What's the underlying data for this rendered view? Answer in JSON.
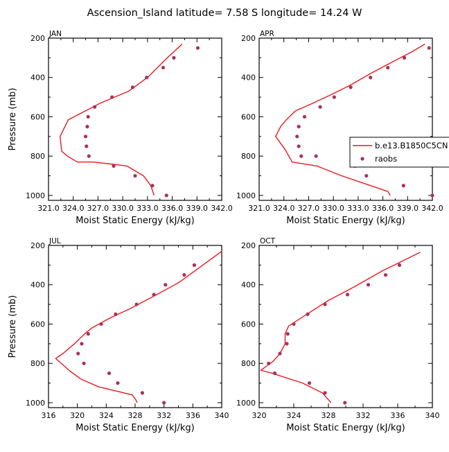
{
  "figure": {
    "title": "Ascension_Island  latitude= 7.58 S longitude= 14.24 W"
  },
  "colors": {
    "model_line": "#e8191e",
    "raobs_marker": "#a8325a",
    "axes": "#000000"
  },
  "chart_data": [
    {
      "type": "line",
      "panel_label": "JAN",
      "xlabel": "Moist Static Energy (kJ/kg)",
      "ylabel": "Pressure (mb)",
      "xlim": [
        321.0,
        342.0
      ],
      "ylim": [
        200,
        1025
      ],
      "y_inverted": true,
      "xticks": [
        "321.0",
        "324.0",
        "327.0",
        "330.0",
        "333.0",
        "336.0",
        "339.0",
        "342.0"
      ],
      "yticks": [
        "200",
        "400",
        "600",
        "800",
        "1000"
      ],
      "grid": false,
      "series": [
        {
          "name": "b.e13.B1850C5CN",
          "kind": "line",
          "x": [
            337.2,
            335.4,
            333.0,
            330.7,
            327.3,
            325.5,
            323.4,
            322.4,
            322.6,
            323.3,
            324.5,
            326.4,
            328.5,
            330.5,
            332.5,
            333.4,
            333.8
          ],
          "y": [
            230,
            300,
            400,
            470,
            530,
            570,
            615,
            700,
            775,
            800,
            830,
            830,
            840,
            850,
            900,
            950,
            1000
          ]
        },
        {
          "name": "raobs",
          "kind": "scatter",
          "x": [
            339.1,
            336.2,
            334.9,
            332.9,
            331.2,
            328.7,
            326.6,
            325.8,
            325.7,
            325.5,
            325.6,
            325.9,
            328.9,
            331.5,
            333.6,
            335.3
          ],
          "y": [
            250,
            300,
            350,
            400,
            450,
            500,
            550,
            600,
            650,
            700,
            750,
            800,
            850,
            900,
            950,
            1000
          ]
        }
      ]
    },
    {
      "type": "line",
      "panel_label": "APR",
      "xlabel": "Moist Static Energy (kJ/kg)",
      "ylabel": "",
      "xlim": [
        321.0,
        342.0
      ],
      "ylim": [
        200,
        1025
      ],
      "y_inverted": true,
      "xticks": [
        "321.0",
        "324.0",
        "327.0",
        "330.0",
        "333.0",
        "336.0",
        "339.0",
        "342.0"
      ],
      "yticks": [
        "200",
        "400",
        "600",
        "800",
        "1000"
      ],
      "grid": false,
      "legend": {
        "placement": "right",
        "entries": [
          "b.e13.B1850C5CN",
          "raobs"
        ]
      },
      "series": [
        {
          "name": "b.e13.B1850C5CN",
          "kind": "line",
          "x": [
            341.1,
            339.5,
            337.2,
            334.5,
            332.0,
            329.6,
            327.3,
            325.4,
            324.3,
            323.6,
            323.0,
            324.2,
            325.0,
            328.0,
            331.0,
            334.5,
            336.6,
            336.9
          ],
          "y": [
            230,
            270,
            320,
            380,
            440,
            490,
            535,
            570,
            615,
            650,
            700,
            770,
            830,
            850,
            900,
            950,
            980,
            1000
          ]
        },
        {
          "name": "raobs",
          "kind": "scatter",
          "x": [
            341.6,
            338.6,
            336.6,
            334.5,
            332.1,
            330.1,
            328.4,
            326.5,
            325.8,
            325.6,
            325.8,
            326.1,
            327.9,
            332.6,
            334.0,
            338.5,
            342.0
          ],
          "y": [
            250,
            300,
            350,
            400,
            450,
            500,
            550,
            600,
            650,
            700,
            750,
            800,
            800,
            850,
            900,
            950,
            1000
          ]
        }
      ]
    },
    {
      "type": "line",
      "panel_label": "JUL",
      "xlabel": "Moist Static Energy (kJ/kg)",
      "ylabel": "Pressure (mb)",
      "xlim": [
        316,
        340
      ],
      "ylim": [
        200,
        1025
      ],
      "y_inverted": true,
      "xticks": [
        "316",
        "320",
        "324",
        "328",
        "332",
        "336",
        "340"
      ],
      "yticks": [
        "200",
        "400",
        "600",
        "800",
        "1000"
      ],
      "grid": false,
      "series": [
        {
          "name": "b.e13.B1850C5CN",
          "kind": "line",
          "x": [
            340.0,
            337.0,
            334.0,
            330.5,
            327.4,
            324.5,
            322.0,
            321.0,
            319.6,
            318.0,
            317.0,
            319.0,
            320.5,
            323.0,
            327.6,
            328.1,
            328.3
          ],
          "y": [
            230,
            310,
            390,
            460,
            520,
            570,
            620,
            650,
            700,
            750,
            775,
            840,
            880,
            920,
            960,
            985,
            1000
          ]
        },
        {
          "name": "raobs",
          "kind": "scatter",
          "x": [
            336.2,
            334.8,
            332.2,
            330.6,
            328.2,
            325.3,
            323.3,
            321.5,
            320.6,
            320.1,
            320.9,
            324.4,
            325.6,
            329.0,
            332.0
          ],
          "y": [
            300,
            350,
            400,
            450,
            500,
            550,
            600,
            650,
            700,
            750,
            800,
            850,
            900,
            950,
            1000
          ]
        }
      ]
    },
    {
      "type": "line",
      "panel_label": "OCT",
      "xlabel": "Moist Static Energy (kJ/kg)",
      "ylabel": "",
      "xlim": [
        320,
        340
      ],
      "ylim": [
        200,
        1025
      ],
      "y_inverted": true,
      "xticks": [
        "320",
        "324",
        "328",
        "332",
        "336",
        "340"
      ],
      "yticks": [
        "200",
        "400",
        "600",
        "800",
        "1000"
      ],
      "grid": false,
      "series": [
        {
          "name": "b.e13.B1850C5CN",
          "kind": "line",
          "x": [
            338.6,
            334.2,
            331.0,
            328.0,
            325.5,
            323.4,
            323.0,
            323.0,
            322.4,
            321.6,
            320.2,
            321.5,
            325.0,
            327.3,
            328.0,
            328.3
          ],
          "y": [
            235,
            330,
            410,
            480,
            550,
            610,
            650,
            700,
            750,
            790,
            835,
            850,
            900,
            950,
            985,
            1000
          ]
        },
        {
          "name": "raobs",
          "kind": "scatter",
          "x": [
            336.2,
            334.6,
            332.6,
            330.2,
            327.6,
            325.6,
            324.0,
            323.3,
            323.2,
            322.4,
            321.1,
            321.8,
            325.8,
            327.6,
            329.9
          ],
          "y": [
            300,
            350,
            400,
            450,
            500,
            550,
            600,
            650,
            700,
            750,
            800,
            850,
            900,
            950,
            1000
          ]
        }
      ]
    }
  ]
}
